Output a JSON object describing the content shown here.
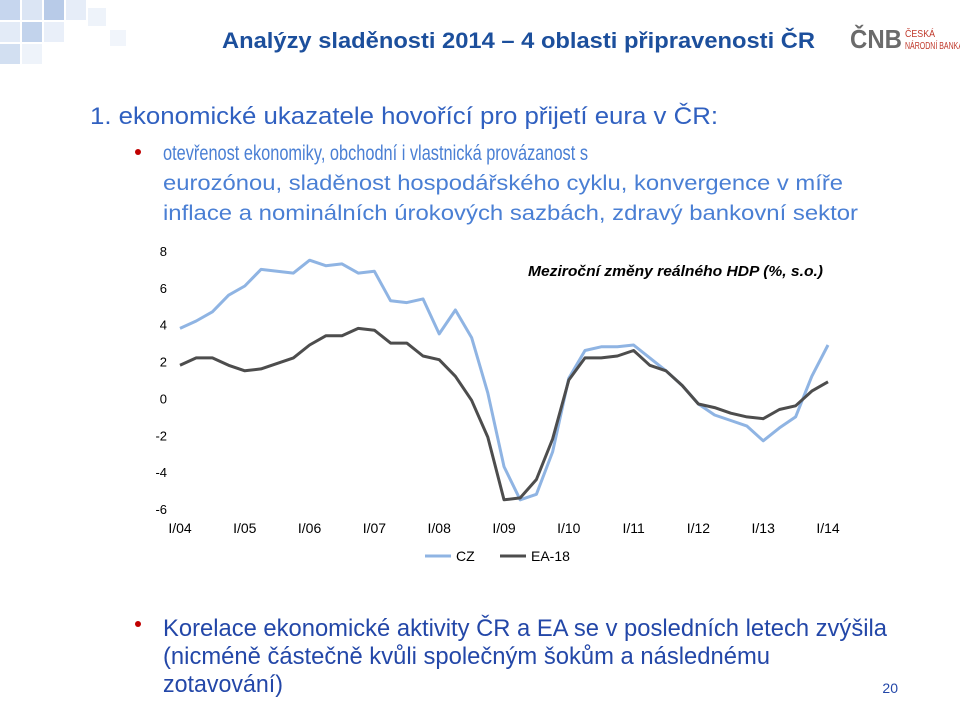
{
  "header": {
    "title": "Analýzy sladěnosti 2014 – 4 oblasti připravenosti ČR",
    "logo": {
      "abbr": "ČNB",
      "name_lines": [
        "ČESKÁ",
        "NÁRODNÍ BANKA"
      ]
    }
  },
  "section": {
    "heading": "1. ekonomické ukazatele hovořící pro přijetí eura v ČR:",
    "bullet_lines": [
      "otevřenost ekonomiky, obchodní i vlastnická provázanost s",
      "eurozónou, sladěnost hospodářského cyklu, konvergence v míře",
      "inflace a nominálních úrokových sazbách, zdravý bankovní sektor"
    ]
  },
  "chart_data": {
    "type": "line",
    "annotation": "Meziroční změny reálného HDP (%, s.o.)",
    "categories": [
      "I/04",
      null,
      null,
      null,
      "I/05",
      null,
      null,
      null,
      "I/06",
      null,
      null,
      null,
      "I/07",
      null,
      null,
      null,
      "I/08",
      null,
      null,
      null,
      "I/09",
      null,
      null,
      null,
      "I/10",
      null,
      null,
      null,
      "I/11",
      null,
      null,
      null,
      "I/12",
      null,
      null,
      null,
      "I/13",
      null,
      null,
      null,
      "I/14"
    ],
    "series": [
      {
        "name": "CZ",
        "color": "#8fb4e3",
        "values": [
          3.8,
          4.2,
          4.7,
          5.6,
          6.1,
          7.0,
          6.9,
          6.8,
          7.5,
          7.2,
          7.3,
          6.8,
          6.9,
          5.3,
          5.2,
          5.4,
          3.5,
          4.8,
          3.3,
          0.3,
          -3.7,
          -5.5,
          -5.2,
          -2.9,
          1.1,
          2.6,
          2.8,
          2.8,
          2.9,
          2.2,
          1.5,
          0.7,
          -0.3,
          -0.9,
          -1.2,
          -1.5,
          -2.3,
          -1.6,
          -1.0,
          1.2,
          2.9
        ]
      },
      {
        "name": "EA-18",
        "color": "#4d4d4d",
        "values": [
          1.8,
          2.2,
          2.2,
          1.8,
          1.5,
          1.6,
          1.9,
          2.2,
          2.9,
          3.4,
          3.4,
          3.8,
          3.7,
          3.0,
          3.0,
          2.3,
          2.1,
          1.2,
          -0.1,
          -2.1,
          -5.5,
          -5.4,
          -4.4,
          -2.2,
          1.0,
          2.2,
          2.2,
          2.3,
          2.6,
          1.8,
          1.5,
          0.7,
          -0.3,
          -0.5,
          -0.8,
          -1.0,
          -1.1,
          -0.6,
          -0.4,
          0.4,
          0.9
        ]
      }
    ],
    "ylim": [
      -6,
      8
    ],
    "yticks": [
      -6,
      -4,
      -2,
      0,
      2,
      4,
      6,
      8
    ],
    "legend": "bottom"
  },
  "conclusion": {
    "lines": [
      "Korelace ekonomické aktivity ČR a EA se v posledních letech zvýšila",
      "(nicméně částečně kvůli společným šokům a následnému",
      "zotavování)"
    ]
  },
  "page_number": "20"
}
